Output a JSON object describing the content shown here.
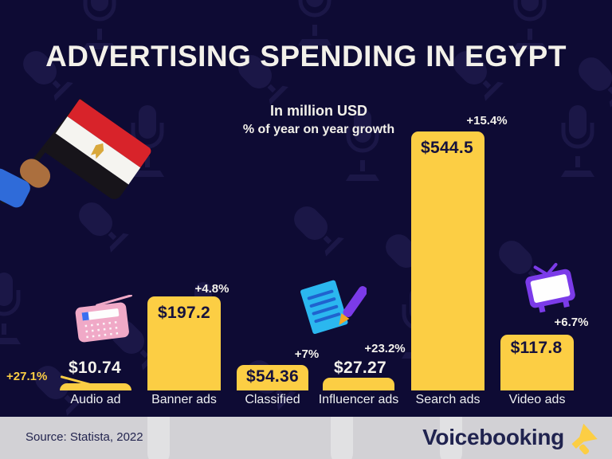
{
  "page": {
    "title": "ADVERTISING SPENDING IN EGYPT",
    "subtitle_line1": "In million USD",
    "subtitle_line2": "% of year on year growth"
  },
  "chart_data": {
    "type": "bar",
    "title": "Advertising spending in Egypt",
    "unit": "million USD",
    "categories": [
      "Audio ad",
      "Banner ads",
      "Classified",
      "Influencer ads",
      "Search ads",
      "Video ads"
    ],
    "series": [
      {
        "name": "Ad spending (million USD)",
        "values": [
          10.74,
          197.2,
          54.36,
          27.27,
          544.5,
          117.8
        ]
      },
      {
        "name": "Year on year growth (%)",
        "values": [
          "+27.1%",
          "+4.8%",
          "+7%",
          "+23.2%",
          "+15.4%",
          "+6.7%"
        ]
      }
    ],
    "value_labels": [
      "$10.74",
      "$197.2",
      "$54.36",
      "$27.27",
      "$544.5",
      "$117.8"
    ],
    "ylim": [
      0,
      560
    ],
    "grid": false,
    "legend": "none",
    "bar_color": "#fcce44"
  },
  "bars": [
    {
      "label": "Audio ad",
      "value": 10.74,
      "value_label": "$10.74",
      "growth": "+27.1%"
    },
    {
      "label": "Banner ads",
      "value": 197.2,
      "value_label": "$197.2",
      "growth": "+4.8%"
    },
    {
      "label": "Classified",
      "value": 54.36,
      "value_label": "$54.36",
      "growth": "+7%"
    },
    {
      "label": "Influencer ads",
      "value": 27.27,
      "value_label": "$27.27",
      "growth": "+23.2%"
    },
    {
      "label": "Search ads",
      "value": 544.5,
      "value_label": "$544.5",
      "growth": "+15.4%"
    },
    {
      "label": "Video ads",
      "value": 117.8,
      "value_label": "$117.8",
      "growth": "+6.7%"
    }
  ],
  "footer": {
    "source": "Source: Statista, 2022",
    "brand": "Voicebooking"
  },
  "icons": [
    "egypt-flag",
    "radio-icon",
    "notepad-pen-icon",
    "tv-icon",
    "megaphone-icon",
    "microphone-pattern"
  ],
  "colors": {
    "background": "#0e0b34",
    "bar": "#fcce44",
    "accent_yellow": "#fcce44",
    "text_light": "#f4f2ec",
    "text_dark": "#16123c",
    "footer_background": "#d2d1d5",
    "footer_text": "#20234f",
    "flag_red": "#d8232a",
    "flag_black": "#17141a"
  }
}
